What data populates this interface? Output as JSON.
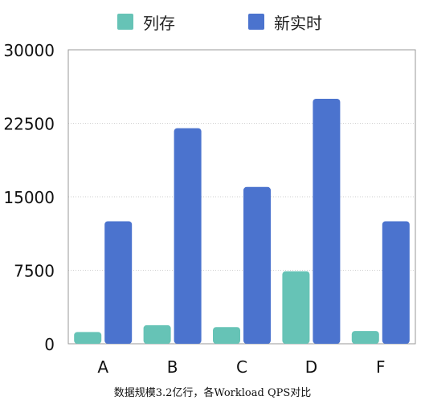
{
  "legend": {
    "items": [
      {
        "label": "列存",
        "color": "#66C3B6"
      },
      {
        "label": "新实时",
        "color": "#4B73CE"
      }
    ]
  },
  "caption": "数据规模3.2亿行，各Workload QPS对比",
  "chart_data": {
    "type": "bar",
    "categories": [
      "A",
      "B",
      "C",
      "D",
      "F"
    ],
    "series": [
      {
        "name": "列存",
        "color": "#66C3B6",
        "values": [
          1200,
          1900,
          1700,
          7400,
          1300
        ]
      },
      {
        "name": "新实时",
        "color": "#4B73CE",
        "values": [
          12500,
          22000,
          16000,
          25000,
          12500
        ]
      }
    ],
    "ylim": [
      0,
      30000
    ],
    "yticks": [
      0,
      7500,
      15000,
      22500,
      30000
    ],
    "ytick_labels": [
      "0",
      "7500",
      "15000",
      "22500",
      "30000"
    ],
    "xlabel": "",
    "ylabel": "",
    "grid": true,
    "legend_position": "top"
  }
}
